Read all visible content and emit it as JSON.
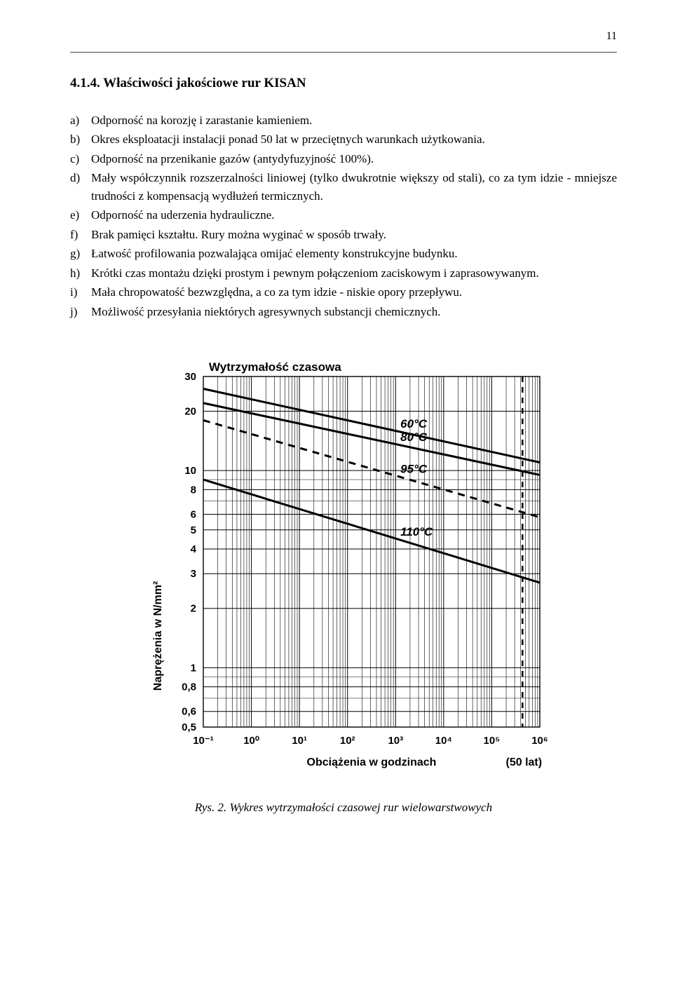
{
  "page_number": "11",
  "heading": "4.1.4. Właściwości jakościowe rur KISAN",
  "items": [
    {
      "letter": "a)",
      "text": "Odporność na korozję i zarastanie kamieniem."
    },
    {
      "letter": "b)",
      "text": "Okres eksploatacji instalacji ponad 50 lat w przeciętnych warunkach użytkowania."
    },
    {
      "letter": "c)",
      "text": "Odporność na przenikanie gazów (antydyfuzyjność 100%)."
    },
    {
      "letter": "d)",
      "text": "Mały współczynnik rozszerzalności liniowej (tylko dwukrotnie większy od stali), co za tym idzie - mniejsze trudności z kompensacją wydłużeń termicznych."
    },
    {
      "letter": "e)",
      "text": "Odporność na uderzenia hydrauliczne."
    },
    {
      "letter": "f)",
      "text": "Brak pamięci kształtu. Rury można wyginać w sposób trwały."
    },
    {
      "letter": "g)",
      "text": "Łatwość profilowania pozwalająca omijać elementy konstrukcyjne budynku."
    },
    {
      "letter": "h)",
      "text": "Krótki czas montażu dzięki prostym i pewnym połączeniom zaciskowym i zaprasowywanym."
    },
    {
      "letter": "i)",
      "text": "Mała chropowatość bezwzględna, a co za tym idzie - niskie opory przepływu."
    },
    {
      "letter": "j)",
      "text": "Możliwość przesyłania niektórych agresywnych substancji chemicznych."
    }
  ],
  "chart": {
    "type": "log-log-line",
    "title": "Wytrzymałość czasowa",
    "x_label": "Obciążenia w godzinach",
    "y_label": "Naprężenia w N/mm²",
    "x_ticks": [
      "10⁻¹",
      "10⁰",
      "10¹",
      "10²",
      "10³",
      "10⁴",
      "10⁵",
      "10⁶"
    ],
    "x_exp_range": [
      -1,
      6
    ],
    "y_ticks": [
      "0,5",
      "0,6",
      "0,8",
      "1",
      "2",
      "3",
      "4",
      "5",
      "6",
      "8",
      "10",
      "20",
      "30"
    ],
    "y_values": [
      0.5,
      0.6,
      0.8,
      1,
      2,
      3,
      4,
      5,
      6,
      8,
      10,
      20,
      30
    ],
    "series": [
      {
        "label": "60°C",
        "style": "solid",
        "y_at_xminus1": 26,
        "y_at_x6": 11
      },
      {
        "label": "80°C",
        "style": "solid",
        "y_at_xminus1": 22,
        "y_at_x6": 9.5
      },
      {
        "label": "95°C",
        "style": "dashed",
        "y_at_xminus1": 18,
        "y_at_x6": 5.8
      },
      {
        "label": "110°C",
        "style": "solid",
        "y_at_xminus1": 9,
        "y_at_x6": 2.7
      }
    ],
    "fifty_year_label": "(50 lat)",
    "fifty_year_x_exp": 5.64,
    "colors": {
      "line": "#000000",
      "grid": "#000000",
      "background": "#ffffff",
      "text": "#000000"
    },
    "line_width_series": 3,
    "line_width_grid_major": 1,
    "line_width_frame": 1.4,
    "title_fontsize": 17,
    "label_fontsize": 16,
    "tick_fontsize": 15,
    "series_label_fontsize": 17
  },
  "caption": "Rys. 2. Wykres wytrzymałości czasowej rur wielowarstwowych"
}
